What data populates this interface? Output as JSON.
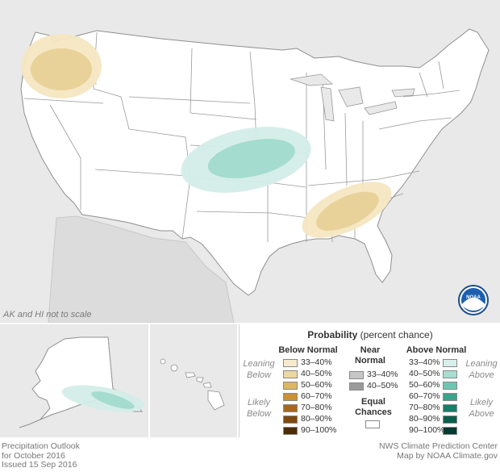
{
  "map": {
    "scale_note": "AK and HI not to scale",
    "logo_text": "NOAA",
    "colors": {
      "land": "#ffffff",
      "background": "#e9e9e9",
      "border": "#8f8f8f",
      "below_33_40": "#f5e6c2",
      "below_40_50": "#e8cf93",
      "above_33_40": "#d4ede8",
      "above_40_50": "#9fd9cc",
      "above_50_60": "#6dc6b4"
    },
    "regions": [
      {
        "name": "Pacific Northwest",
        "category": "below",
        "levels": [
          "33-40%",
          "40-50%"
        ]
      },
      {
        "name": "Central Plains",
        "category": "above",
        "levels": [
          "33-40%",
          "40-50%"
        ]
      },
      {
        "name": "Southeast",
        "category": "below",
        "levels": [
          "33-40%",
          "40-50%"
        ]
      },
      {
        "name": "Southern Alaska",
        "category": "above",
        "levels": [
          "33-40%",
          "40-50%"
        ]
      }
    ]
  },
  "legend": {
    "title_bold": "Probability",
    "title_rest": " (percent chance)",
    "below_header": "Below Normal",
    "near_header_1": "Near",
    "near_header_2": "Normal",
    "above_header": "Above Normal",
    "leaning_below_1": "Leaning",
    "leaning_below_2": "Below",
    "likely_below_1": "Likely",
    "likely_below_2": "Below",
    "leaning_above_1": "Leaning",
    "leaning_above_2": "Above",
    "likely_above_1": "Likely",
    "likely_above_2": "Above",
    "equal_1": "Equal",
    "equal_2": "Chances",
    "below_items": [
      {
        "label": "33–40%",
        "color": "#f7ebcf"
      },
      {
        "label": "40–50%",
        "color": "#ecd8a4"
      },
      {
        "label": "50–60%",
        "color": "#ddb664"
      },
      {
        "label": "60–70%",
        "color": "#cc9133"
      },
      {
        "label": "70–80%",
        "color": "#a8681a"
      },
      {
        "label": "80–90%",
        "color": "#7d4a10"
      },
      {
        "label": "90–100%",
        "color": "#4d2b06"
      }
    ],
    "near_items": [
      {
        "label": "33–40%",
        "color": "#c6c6c6"
      },
      {
        "label": "40–50%",
        "color": "#9a9a9a"
      }
    ],
    "above_items": [
      {
        "label": "33–40%",
        "color": "#d8efea"
      },
      {
        "label": "40–50%",
        "color": "#a8ddd0"
      },
      {
        "label": "50–60%",
        "color": "#6ec6b2"
      },
      {
        "label": "60–70%",
        "color": "#36a58c"
      },
      {
        "label": "70–80%",
        "color": "#14806a"
      },
      {
        "label": "80–90%",
        "color": "#0a5f4e"
      },
      {
        "label": "90–100%",
        "color": "#053b30"
      }
    ]
  },
  "footer": {
    "line1": "Precipitation Outlook",
    "line2": "for October 2016",
    "line3": "Issued 15 Sep 2016",
    "credit1": "NWS Climate Prediction Center",
    "credit2": "Map by NOAA Climate.gov"
  }
}
